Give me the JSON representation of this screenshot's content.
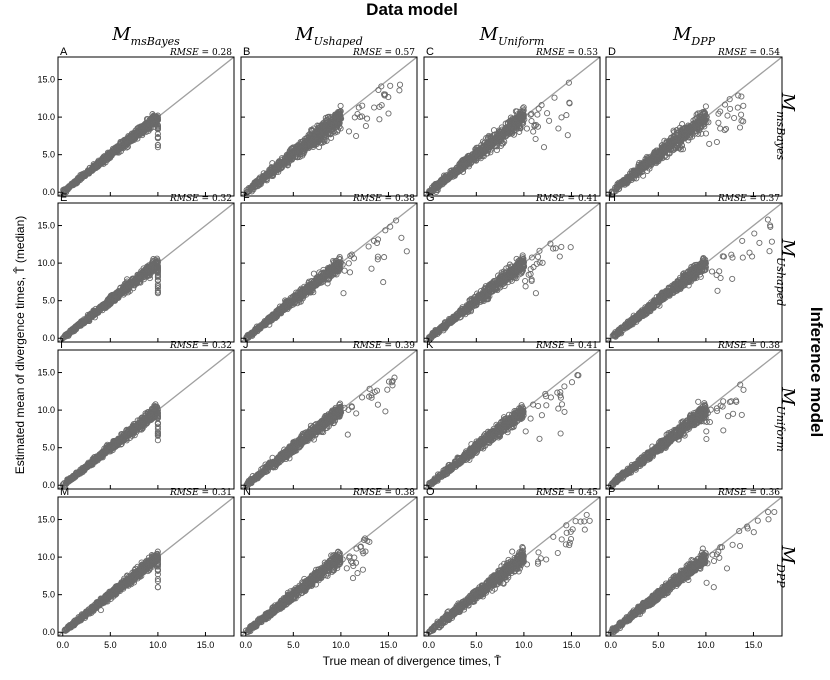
{
  "figure": {
    "col_group_title": "Data model",
    "row_group_title": "Inference model",
    "xlabel": "True mean of divergence times, T̄",
    "ylabel": "Estimated mean of divergence times, T̂ (median)",
    "columns": [
      {
        "base": "M",
        "sub": "msBayes"
      },
      {
        "base": "M",
        "sub": "Ushaped"
      },
      {
        "base": "M",
        "sub": "Uniform"
      },
      {
        "base": "M",
        "sub": "DPP"
      }
    ],
    "rows": [
      {
        "base": "M",
        "sub": "msBayes"
      },
      {
        "base": "M",
        "sub": "Ushaped"
      },
      {
        "base": "M",
        "sub": "Uniform"
      },
      {
        "base": "M",
        "sub": "DPP"
      }
    ],
    "colors": {
      "points": "#6a6a6a",
      "identity_line": "#a0a0a0"
    }
  },
  "chart_data": {
    "type": "scatter",
    "xlim": [
      -0.5,
      18
    ],
    "ylim": [
      -0.5,
      18
    ],
    "xticks": [
      "0.0",
      "5.0",
      "10.0",
      "15.0"
    ],
    "yticks": [
      "0.0",
      "5.0",
      "10.0",
      "15.0"
    ],
    "xtick_values": [
      0,
      5,
      10,
      15
    ],
    "ytick_values": [
      0,
      5,
      10,
      15
    ],
    "identity_line": true,
    "rmse_label": "RMSE",
    "panels": [
      {
        "letter": "A",
        "rmse": "0.28",
        "x_max": 10,
        "spread": 0.28
      },
      {
        "letter": "B",
        "rmse": "0.57",
        "x_max": 16.5,
        "spread": 0.57
      },
      {
        "letter": "C",
        "rmse": "0.53",
        "x_max": 15,
        "spread": 0.53
      },
      {
        "letter": "D",
        "rmse": "0.54",
        "x_max": 14,
        "spread": 0.54
      },
      {
        "letter": "E",
        "rmse": "0.32",
        "x_max": 10,
        "spread": 0.32
      },
      {
        "letter": "F",
        "rmse": "0.38",
        "x_max": 17,
        "spread": 0.38
      },
      {
        "letter": "G",
        "rmse": "0.41",
        "x_max": 15,
        "spread": 0.41
      },
      {
        "letter": "H",
        "rmse": "0.37",
        "x_max": 17,
        "spread": 0.37
      },
      {
        "letter": "I",
        "rmse": "0.32",
        "x_max": 10,
        "spread": 0.32
      },
      {
        "letter": "J",
        "rmse": "0.39",
        "x_max": 16.5,
        "spread": 0.39
      },
      {
        "letter": "K",
        "rmse": "0.41",
        "x_max": 16,
        "spread": 0.41
      },
      {
        "letter": "L",
        "rmse": "0.38",
        "x_max": 14,
        "spread": 0.38
      },
      {
        "letter": "M",
        "rmse": "0.31",
        "x_max": 10,
        "spread": 0.31
      },
      {
        "letter": "N",
        "rmse": "0.38",
        "x_max": 13,
        "spread": 0.38
      },
      {
        "letter": "O",
        "rmse": "0.45",
        "x_max": 17,
        "spread": 0.45
      },
      {
        "letter": "P",
        "rmse": "0.36",
        "x_max": 17.5,
        "spread": 0.36
      }
    ]
  }
}
